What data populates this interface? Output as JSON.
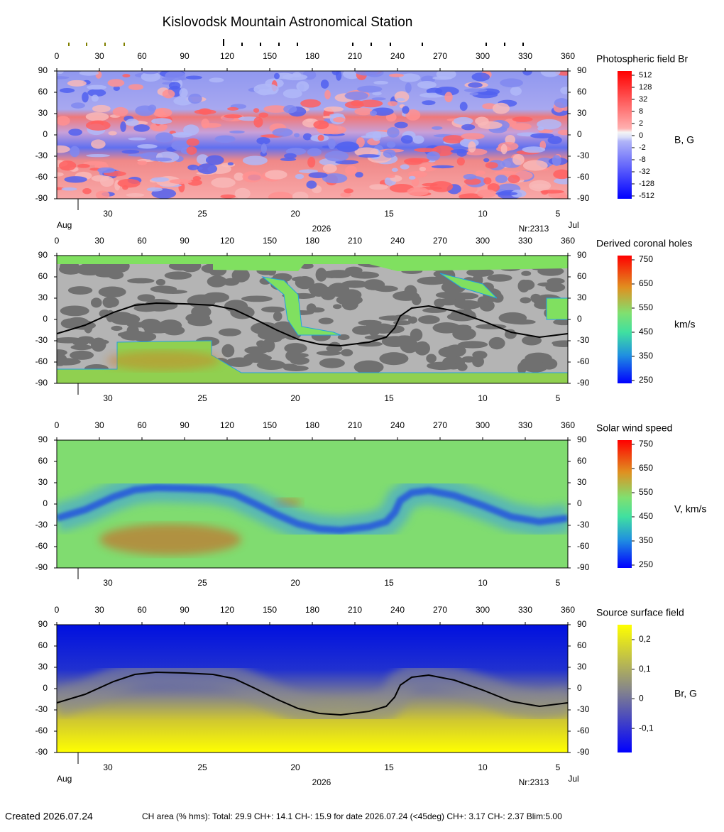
{
  "title": "Kislovodsk Mountain Astronomical Station",
  "longitude_ticks": [
    0,
    30,
    60,
    90,
    120,
    150,
    180,
    210,
    240,
    270,
    300,
    330,
    360
  ],
  "latitude_ticks": [
    90,
    60,
    30,
    0,
    -30,
    -60,
    -90
  ],
  "date_ticks": [
    30,
    25,
    20,
    15,
    10,
    5
  ],
  "date_labels": {
    "start_month": "Aug",
    "year": "2026",
    "rotation": "Nr:2313",
    "end_month": "Jul"
  },
  "panels": [
    {
      "title": "Photospheric field Br",
      "unit": "B, G",
      "colorbar_ticks": [
        "512",
        "128",
        "32",
        "8",
        "2",
        "0",
        "-2",
        "-8",
        "-32",
        "-128",
        "-512"
      ]
    },
    {
      "title": "Derived coronal holes",
      "unit": "km/s",
      "colorbar_ticks": [
        "750",
        "650",
        "550",
        "450",
        "350",
        "250"
      ]
    },
    {
      "title": "Solar wind speed",
      "unit": "V, km/s",
      "colorbar_ticks": [
        "750",
        "650",
        "550",
        "450",
        "350",
        "250"
      ]
    },
    {
      "title": "Source surface field",
      "unit": "Br, G",
      "colorbar_ticks": [
        "0,2",
        "0,1",
        "0",
        "-0,1"
      ]
    }
  ],
  "footer": {
    "created": "Created  2026.07.24",
    "ch_area": "CH area (% hms): Total: 29.9 CH+: 14.1   CH-: 15.9 for date 2026.07.24 (<45deg) CH+: 3.17   CH-: 2.37 Blim:5.00"
  }
}
